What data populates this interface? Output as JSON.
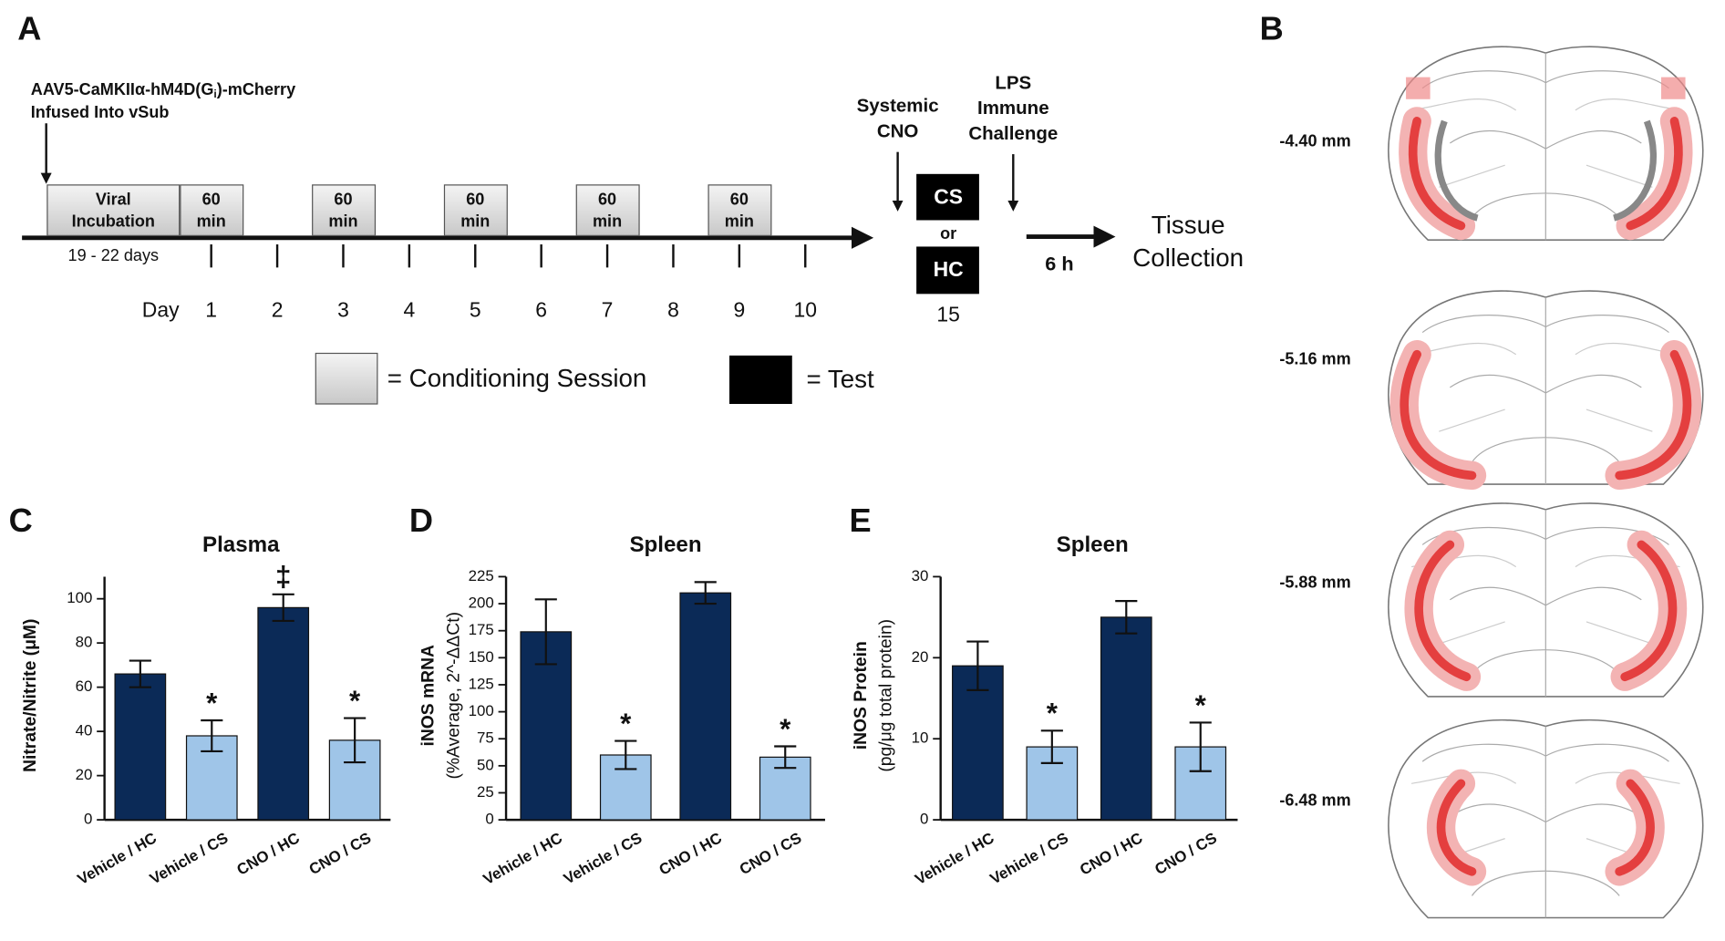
{
  "panel_labels": [
    "A",
    "B",
    "C",
    "D",
    "E"
  ],
  "timeline": {
    "virus": [
      "AAV5-CaMKIIα-hM4D(G",
      "i",
      ")-mCherry"
    ],
    "virus_site": "Infused Into vSub",
    "incubation": [
      "Viral",
      "Incubation"
    ],
    "incubation_duration": "19 - 22 days",
    "day_label": "Day",
    "days": [
      1,
      2,
      3,
      4,
      5,
      6,
      7,
      8,
      9,
      10
    ],
    "session_days": [
      1,
      3,
      5,
      7,
      9
    ],
    "session_label": [
      "60",
      "min"
    ],
    "systemic": [
      "Systemic",
      "CNO"
    ],
    "test_boxes": [
      "CS",
      "HC"
    ],
    "test_or": "or",
    "test_day": "15",
    "lps": [
      "LPS",
      "Immune",
      "Challenge"
    ],
    "delay": "6 h",
    "collection": [
      "Tissue",
      "Collection"
    ],
    "legend": [
      "= Conditioning Session",
      "= Test"
    ]
  },
  "sections": [
    "-4.40 mm",
    "-5.16 mm",
    "-5.88 mm",
    "-6.48 mm"
  ],
  "chart_data": [
    {
      "type": "bar",
      "title": "Plasma",
      "ylabel": [
        "Nitrate/Nitrite (μM)"
      ],
      "categories": [
        "Vehicle / HC",
        "Vehicle / CS",
        "CNO / HC",
        "CNO / CS"
      ],
      "values": [
        66,
        38,
        96,
        36
      ],
      "errors": [
        6,
        7,
        6,
        10
      ],
      "markers": [
        null,
        "*",
        "‡",
        "*"
      ],
      "colors": [
        "#0b2a57",
        "#9fc5e8",
        "#0b2a57",
        "#9fc5e8"
      ],
      "ylim": [
        0,
        110
      ],
      "yticks": [
        0,
        20,
        40,
        60,
        80,
        100
      ]
    },
    {
      "type": "bar",
      "title": "Spleen",
      "ylabel": [
        "iNOS mRNA",
        "(%Average, 2^-ΔΔCt)"
      ],
      "categories": [
        "Vehicle / HC",
        "Vehicle / CS",
        "CNO / HC",
        "CNO / CS"
      ],
      "values": [
        174,
        60,
        210,
        58
      ],
      "errors": [
        30,
        13,
        10,
        10
      ],
      "markers": [
        null,
        "*",
        null,
        "*"
      ],
      "colors": [
        "#0b2a57",
        "#9fc5e8",
        "#0b2a57",
        "#9fc5e8"
      ],
      "ylim": [
        0,
        225
      ],
      "yticks": [
        0,
        25,
        50,
        75,
        100,
        125,
        150,
        175,
        200,
        225
      ]
    },
    {
      "type": "bar",
      "title": "Spleen",
      "ylabel": [
        "iNOS Protein",
        "(pg/μg total protein)"
      ],
      "categories": [
        "Vehicle / HC",
        "Vehicle / CS",
        "CNO / HC",
        "CNO / CS"
      ],
      "values": [
        19,
        9,
        25,
        9
      ],
      "errors": [
        3,
        2,
        2,
        3
      ],
      "markers": [
        null,
        "*",
        null,
        "*"
      ],
      "colors": [
        "#0b2a57",
        "#9fc5e8",
        "#0b2a57",
        "#9fc5e8"
      ],
      "ylim": [
        0,
        30
      ],
      "yticks": [
        0,
        10,
        20,
        30
      ]
    }
  ]
}
